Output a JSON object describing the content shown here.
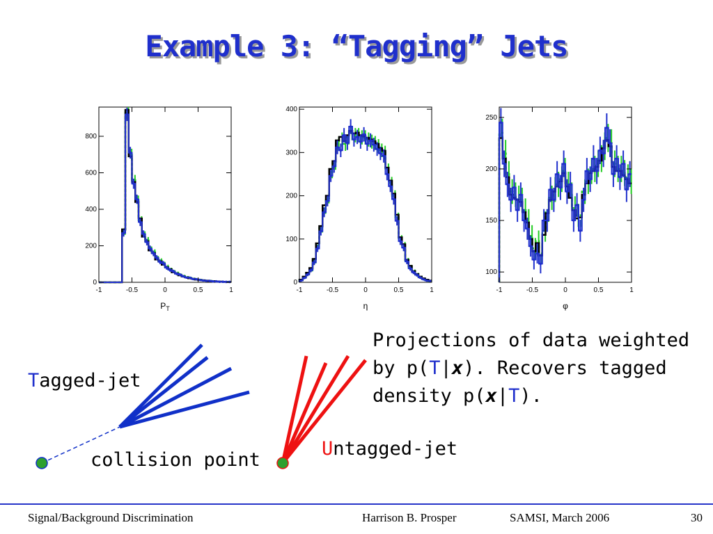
{
  "slide": {
    "title": "Example 3: “Tagging” Jets",
    "caption": {
      "line1": "Projections of data weighted",
      "line2_pre": "by p(",
      "t1": "T",
      "bar1": "|",
      "x1": "x",
      "line2_post": "). Recovers tagged",
      "line3_pre": "density p(",
      "x2": "x",
      "bar2": "|",
      "t2": "T",
      "line3_post": ")."
    },
    "tagged_label": {
      "first": "T",
      "rest": "agged-jet"
    },
    "untagged_label": {
      "first": "U",
      "rest": "ntagged-jet"
    },
    "collision_label": "collision point",
    "footer": {
      "left": "Signal/Background Discrimination",
      "center": "Harrison B. Prosper",
      "right": "SAMSI, March 2006",
      "page": "30"
    }
  },
  "colors": {
    "title": "#1f2fcc",
    "tagged": "#1030c8",
    "untagged": "#ee1111",
    "point": "#2ea02e",
    "hist_green": "#22cc22",
    "hist_blue": "#1f2fcc"
  },
  "chart_data": [
    {
      "type": "histogram",
      "xlabel": "P",
      "xlabel_sub": "T",
      "xlim": [
        -1,
        1
      ],
      "ylim": [
        0,
        960
      ],
      "xticks": [
        -1,
        -0.5,
        0,
        0.5,
        1
      ],
      "xtick_labels": [
        "-1",
        "-0.5",
        "0",
        "0.5",
        "1"
      ],
      "yticks": [
        0,
        200,
        400,
        600,
        800
      ],
      "ytick_labels": [
        "0",
        "200",
        "400",
        "600",
        "800"
      ],
      "bin_edges": [
        -1,
        -0.95,
        -0.9,
        -0.85,
        -0.8,
        -0.75,
        -0.7,
        -0.65,
        -0.6,
        -0.55,
        -0.5,
        -0.45,
        -0.4,
        -0.35,
        -0.3,
        -0.25,
        -0.2,
        -0.15,
        -0.1,
        -0.05,
        0,
        0.05,
        0.1,
        0.15,
        0.2,
        0.25,
        0.3,
        0.35,
        0.4,
        0.45,
        0.5,
        0.55,
        0.6,
        0.65,
        0.7,
        0.75,
        0.8,
        0.85,
        0.9,
        0.95,
        1
      ],
      "series": [
        {
          "values": [
            0,
            0,
            0,
            0,
            0,
            0,
            0,
            280,
            930,
            700,
            560,
            450,
            340,
            260,
            230,
            180,
            165,
            130,
            118,
            100,
            85,
            70,
            58,
            50,
            40,
            34,
            28,
            24,
            20,
            16,
            14,
            11,
            9,
            8,
            6,
            5,
            4,
            3,
            3,
            2
          ]
        },
        {
          "values": [
            0,
            0,
            0,
            0,
            0,
            0,
            0,
            290,
            945,
            690,
            550,
            440,
            350,
            250,
            225,
            175,
            160,
            125,
            115,
            96,
            82,
            72,
            55,
            48,
            38,
            32,
            27,
            22,
            19,
            15,
            13,
            11,
            9,
            7,
            6,
            5,
            4,
            3,
            2,
            2
          ]
        },
        {
          "values": [
            0,
            0,
            0,
            0,
            0,
            0,
            0,
            270,
            920,
            710,
            540,
            455,
            330,
            265,
            220,
            185,
            158,
            135,
            112,
            104,
            80,
            68,
            60,
            47,
            42,
            33,
            26,
            25,
            18,
            17,
            13,
            10,
            8,
            8,
            5,
            5,
            3,
            3,
            2,
            2
          ]
        }
      ]
    },
    {
      "type": "histogram",
      "xlabel": "η",
      "xlim": [
        -1,
        1
      ],
      "ylim": [
        0,
        405
      ],
      "xticks": [
        -1,
        -0.5,
        0,
        0.5,
        1
      ],
      "xtick_labels": [
        "-1",
        "-0.5",
        "0",
        "0.5",
        "1"
      ],
      "yticks": [
        0,
        100,
        200,
        300,
        400
      ],
      "ytick_labels": [
        "0",
        "100",
        "200",
        "300",
        "400"
      ],
      "bin_edges": [
        -1,
        -0.95,
        -0.9,
        -0.85,
        -0.8,
        -0.75,
        -0.7,
        -0.65,
        -0.6,
        -0.55,
        -0.5,
        -0.45,
        -0.4,
        -0.35,
        -0.3,
        -0.25,
        -0.2,
        -0.15,
        -0.1,
        -0.05,
        0,
        0.05,
        0.1,
        0.15,
        0.2,
        0.25,
        0.3,
        0.35,
        0.4,
        0.45,
        0.5,
        0.55,
        0.6,
        0.65,
        0.7,
        0.75,
        0.8,
        0.85,
        0.9,
        0.95,
        1
      ],
      "series": [
        {
          "values": [
            5,
            12,
            20,
            30,
            50,
            85,
            125,
            170,
            195,
            255,
            275,
            320,
            330,
            320,
            335,
            345,
            340,
            340,
            335,
            335,
            330,
            325,
            322,
            315,
            305,
            300,
            260,
            230,
            200,
            150,
            100,
            85,
            50,
            35,
            25,
            18,
            12,
            8,
            5,
            3
          ]
        },
        {
          "values": [
            6,
            13,
            22,
            33,
            54,
            90,
            130,
            178,
            200,
            262,
            280,
            328,
            336,
            326,
            340,
            350,
            344,
            346,
            340,
            338,
            334,
            330,
            326,
            320,
            310,
            304,
            265,
            235,
            205,
            156,
            104,
            88,
            52,
            38,
            26,
            19,
            13,
            9,
            6,
            4
          ]
        },
        {
          "values": [
            4,
            10,
            18,
            28,
            46,
            78,
            118,
            162,
            188,
            246,
            268,
            312,
            305,
            340,
            322,
            360,
            330,
            336,
            325,
            342,
            320,
            328,
            318,
            308,
            298,
            292,
            250,
            222,
            192,
            142,
            95,
            80,
            48,
            32,
            23,
            17,
            11,
            7,
            4,
            3
          ]
        }
      ]
    },
    {
      "type": "histogram",
      "xlabel": "φ",
      "xlim": [
        -1,
        1
      ],
      "ylim": [
        90,
        260
      ],
      "xticks": [
        -1,
        -0.5,
        0,
        0.5,
        1
      ],
      "xtick_labels": [
        "-1",
        "-0.5",
        "0",
        "0.5",
        "1"
      ],
      "yticks": [
        100,
        150,
        200,
        250
      ],
      "ytick_labels": [
        "100",
        "150",
        "200",
        "250"
      ],
      "bin_edges": [
        -1,
        -0.95,
        -0.9,
        -0.85,
        -0.8,
        -0.75,
        -0.7,
        -0.65,
        -0.6,
        -0.55,
        -0.5,
        -0.45,
        -0.4,
        -0.35,
        -0.3,
        -0.25,
        -0.2,
        -0.15,
        -0.1,
        -0.05,
        0,
        0.05,
        0.1,
        0.15,
        0.2,
        0.25,
        0.3,
        0.35,
        0.4,
        0.45,
        0.5,
        0.55,
        0.6,
        0.65,
        0.7,
        0.75,
        0.8,
        0.85,
        0.9,
        0.95,
        1
      ],
      "series": [
        {
          "values": [
            235,
            215,
            195,
            178,
            175,
            172,
            170,
            160,
            150,
            135,
            123,
            130,
            118,
            140,
            160,
            172,
            180,
            185,
            190,
            198,
            185,
            175,
            162,
            155,
            155,
            178,
            188,
            198,
            200,
            205,
            210,
            222,
            230,
            225,
            205,
            200,
            200,
            196,
            192,
            188
          ]
        },
        {
          "values": [
            230,
            210,
            192,
            175,
            172,
            170,
            168,
            158,
            148,
            132,
            120,
            128,
            116,
            136,
            157,
            170,
            178,
            183,
            188,
            196,
            183,
            172,
            160,
            152,
            153,
            175,
            186,
            196,
            198,
            202,
            208,
            220,
            228,
            222,
            202,
            198,
            198,
            194,
            190,
            186
          ]
        },
        {
          "values": [
            245,
            205,
            185,
            170,
            182,
            160,
            175,
            150,
            142,
            125,
            112,
            118,
            108,
            150,
            150,
            180,
            170,
            195,
            182,
            205,
            178,
            185,
            150,
            165,
            140,
            170,
            198,
            190,
            210,
            198,
            218,
            215,
            240,
            225,
            195,
            210,
            192,
            205,
            180,
            195
          ]
        }
      ]
    }
  ]
}
